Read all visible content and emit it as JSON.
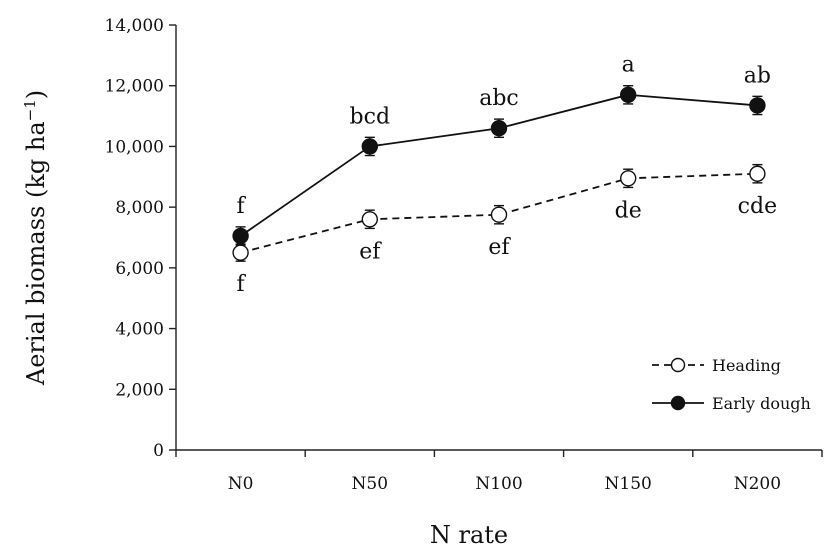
{
  "chart_data": {
    "type": "line",
    "categories": [
      "N0",
      "N50",
      "N100",
      "N150",
      "N200"
    ],
    "xlabel": "N rate",
    "ylabel": "Aerial biomass (kg ha",
    "ylabel_sup": "−1",
    "ylabel_close": ")",
    "ylim": [
      0,
      14000
    ],
    "ytick_step": 2000,
    "ytick_labels": [
      "0",
      "2,000",
      "4,000",
      "6,000",
      "8,000",
      "10,000",
      "12,000",
      "14,000"
    ],
    "grid": false,
    "legend_position": "bottom-right",
    "series": [
      {
        "name": "Heading",
        "values": [
          6500,
          7600,
          7750,
          8950,
          9100
        ],
        "errors": [
          280,
          300,
          300,
          300,
          300
        ],
        "letters": [
          "f",
          "ef",
          "ef",
          "de",
          "cde"
        ],
        "letters_position": "below",
        "line_style": "dashed",
        "marker": "open-circle"
      },
      {
        "name": "Early dough",
        "values": [
          7050,
          10000,
          10600,
          11700,
          11350
        ],
        "errors": [
          300,
          300,
          300,
          300,
          300
        ],
        "letters": [
          "f",
          "bcd",
          "abc",
          "a",
          "ab"
        ],
        "letters_position": "above",
        "line_style": "solid",
        "marker": "filled-circle"
      }
    ]
  }
}
